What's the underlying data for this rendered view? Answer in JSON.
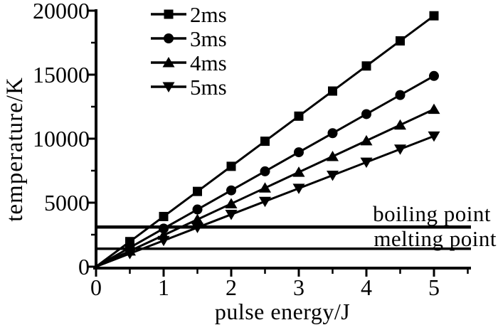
{
  "chart_data": {
    "type": "line",
    "title": "",
    "xlabel": "pulse energy/J",
    "ylabel": "temperature/K",
    "xlim": [
      0,
      5.5
    ],
    "ylim": [
      0,
      20000
    ],
    "grid": false,
    "legend_position": "top-inside-left",
    "ink_color": "#000000",
    "background_color": "#ffffff",
    "x_major_ticks": [
      0,
      1,
      2,
      3,
      4,
      5
    ],
    "x_minor_ticks": [
      0.5,
      1.5,
      2.5,
      3.5,
      4.5,
      5.5
    ],
    "y_major_ticks": [
      0,
      5000,
      10000,
      15000,
      20000
    ],
    "y_minor_ticks": [
      2500,
      7500,
      12500,
      17500
    ],
    "x": [
      0,
      0.5,
      1,
      1.5,
      2,
      2.5,
      3,
      3.5,
      4,
      4.5,
      5
    ],
    "series": [
      {
        "name": "2ms",
        "marker": "square",
        "values": [
          0,
          1960,
          3920,
          5880,
          7840,
          9800,
          11760,
          13720,
          15680,
          17640,
          19600
        ]
      },
      {
        "name": "3ms",
        "marker": "circle",
        "values": [
          0,
          1490,
          2980,
          4470,
          5960,
          7450,
          8940,
          10430,
          11920,
          13410,
          14900
        ]
      },
      {
        "name": "4ms",
        "marker": "triangle-up",
        "values": [
          0,
          1230,
          2460,
          3690,
          4920,
          6150,
          7380,
          8610,
          9840,
          11070,
          12300
        ]
      },
      {
        "name": "5ms",
        "marker": "triangle-down",
        "values": [
          0,
          1020,
          2040,
          3060,
          4080,
          5100,
          6120,
          7140,
          8160,
          9180,
          10200
        ]
      }
    ],
    "reference_lines": [
      {
        "label": "boiling point",
        "value": 3100
      },
      {
        "label": "melting point",
        "value": 1400
      }
    ]
  }
}
